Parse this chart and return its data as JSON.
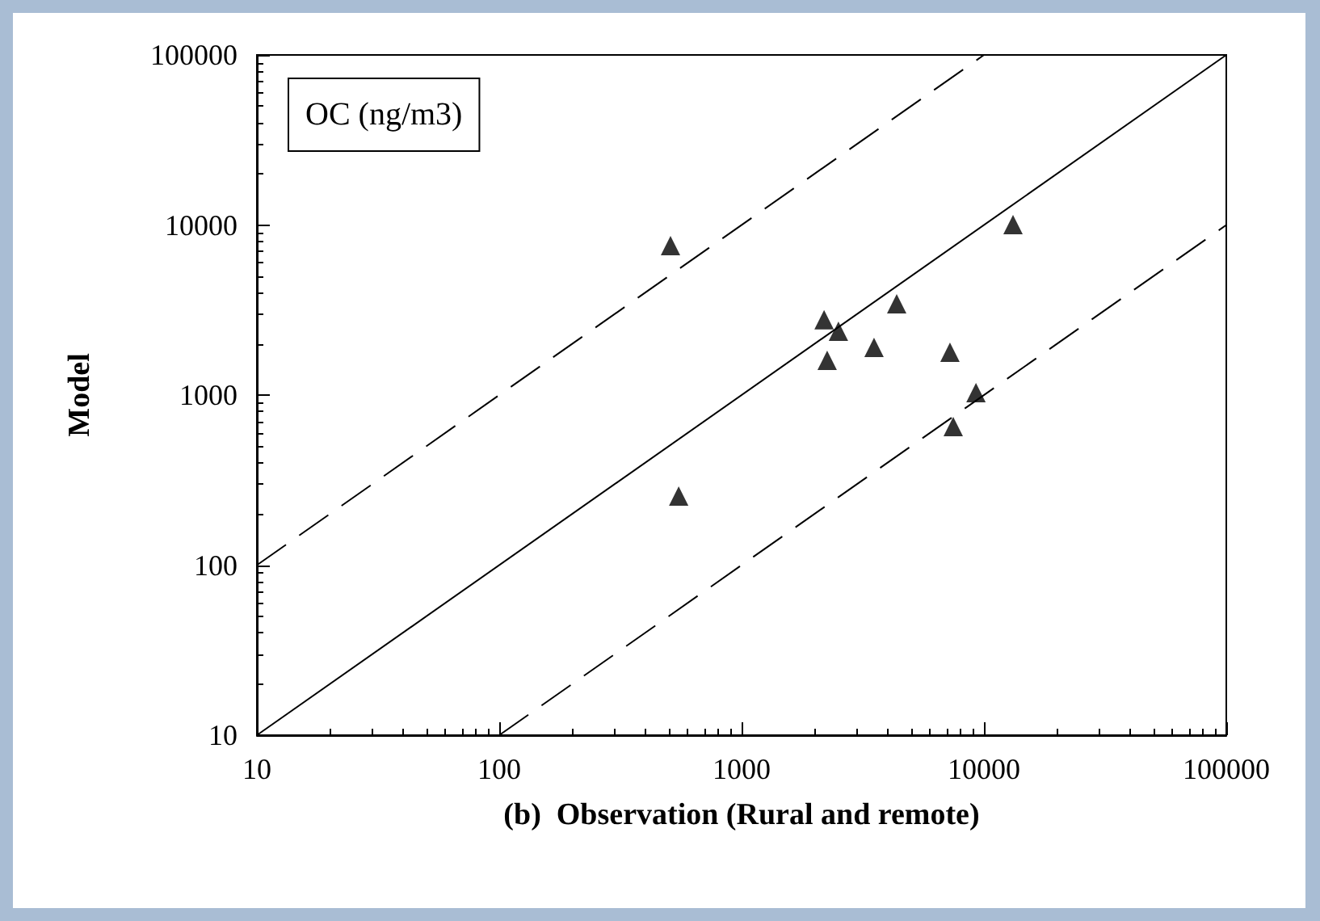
{
  "chart_data": {
    "type": "scatter",
    "xlabel": "(b)  Observation (Rural and remote)",
    "ylabel": "Model",
    "annotations": [
      "OC (ng/m3)"
    ],
    "log": "xy",
    "xlim": [
      10,
      100000
    ],
    "ylim": [
      10,
      100000
    ],
    "xticks": [
      10,
      100,
      1000,
      10000,
      100000
    ],
    "yticks": [
      10,
      100,
      1000,
      10000,
      100000
    ],
    "grid": false,
    "marker": "triangle",
    "series": [
      {
        "color": "#000000",
        "x": [
          509,
          550,
          2190,
          2510,
          2255,
          3520,
          4365,
          7240,
          9270,
          7470,
          13180
        ],
        "values": [
          7570,
          255,
          2770,
          2370,
          1600,
          1907,
          3440,
          1786,
          1033,
          653,
          10050
        ]
      },
      {
        "type": "line",
        "color": "#000000",
        "line_style": "solid",
        "marker": "none",
        "x": [
          10,
          100000
        ],
        "values": [
          10,
          100000
        ]
      },
      {
        "type": "line",
        "color": "#000000",
        "line_style": "dashed",
        "marker": "none",
        "x": [
          10,
          10000
        ],
        "values": [
          100,
          100000
        ]
      },
      {
        "type": "line",
        "color": "#000000",
        "line_style": "dashed",
        "marker": "none",
        "x": [
          100,
          100000
        ],
        "values": [
          10,
          10000
        ]
      }
    ]
  }
}
